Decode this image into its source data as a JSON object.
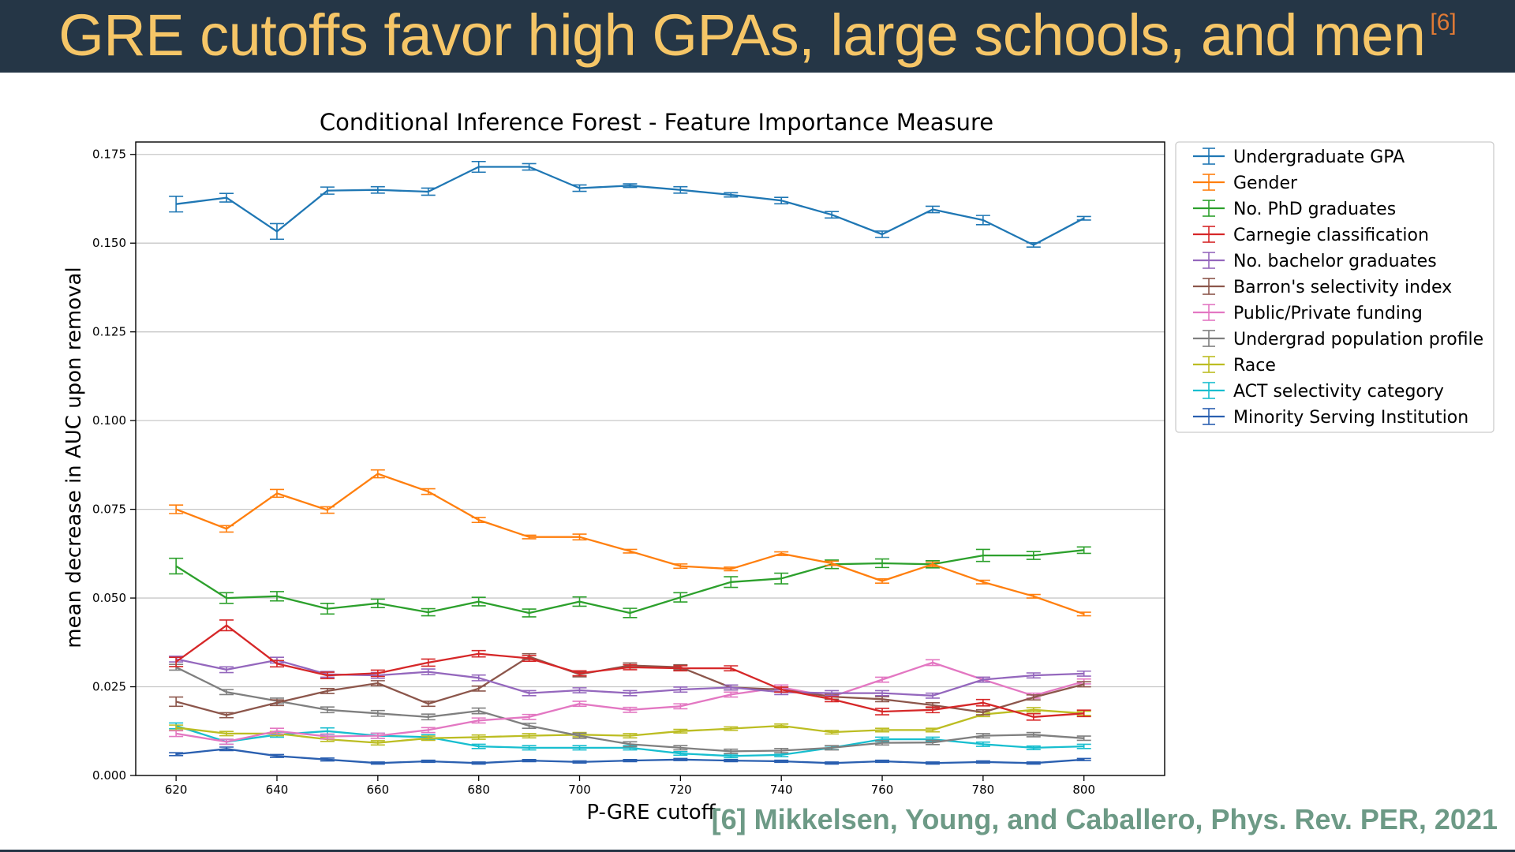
{
  "slide": {
    "title": "GRE cutoffs favor high GPAs, large schools, and men",
    "title_ref": "[6]",
    "citation": "[6] Mikkelsen, Young, and Caballero, Phys. Rev. PER, 2021"
  },
  "chart_data": {
    "type": "line",
    "title": "Conditional Inference Forest - Feature Importance Measure",
    "xlabel": "P-GRE cutoff",
    "ylabel": "mean decrease in AUC upon removal",
    "x": [
      620,
      630,
      640,
      650,
      660,
      670,
      680,
      690,
      700,
      710,
      720,
      730,
      740,
      750,
      760,
      770,
      780,
      790,
      800
    ],
    "xlim": [
      612,
      816
    ],
    "ylim": [
      0,
      0.1785
    ],
    "xticks": [
      620,
      640,
      660,
      680,
      700,
      720,
      740,
      760,
      780,
      800
    ],
    "yticks": [
      0.0,
      0.025,
      0.05,
      0.075,
      0.1,
      0.125,
      0.15,
      0.175
    ],
    "ytick_labels": [
      "0.000",
      "0.025",
      "0.050",
      "0.075",
      "0.100",
      "0.125",
      "0.150",
      "0.175"
    ],
    "grid": "horizontal",
    "legend_position": "outside-right-top",
    "series": [
      {
        "name": "Undergraduate GPA",
        "color": "#1f77b4",
        "values": [
          0.161,
          0.1628,
          0.1533,
          0.1648,
          0.165,
          0.1645,
          0.1715,
          0.1715,
          0.1655,
          0.1662,
          0.165,
          0.1636,
          0.162,
          0.158,
          0.1525,
          0.1595,
          0.1565,
          0.1495,
          0.157
        ],
        "errors": [
          0.0022,
          0.0012,
          0.0022,
          0.001,
          0.0009,
          0.001,
          0.0015,
          0.0009,
          0.0009,
          0.0005,
          0.0009,
          0.0006,
          0.0009,
          0.0009,
          0.0009,
          0.0009,
          0.0013,
          0.0006,
          0.0005
        ]
      },
      {
        "name": "Gender",
        "color": "#ff7f0e",
        "values": [
          0.075,
          0.0695,
          0.0795,
          0.0748,
          0.085,
          0.08,
          0.072,
          0.0672,
          0.0672,
          0.0632,
          0.059,
          0.0582,
          0.0625,
          0.0598,
          0.0548,
          0.0595,
          0.0545,
          0.0505,
          0.0455
        ],
        "errors": [
          0.0012,
          0.0009,
          0.0011,
          0.0009,
          0.0011,
          0.0008,
          0.0007,
          0.0005,
          0.0008,
          0.0005,
          0.0006,
          0.0005,
          0.0005,
          0.0006,
          0.0006,
          0.0006,
          0.0005,
          0.0005,
          0.0005
        ]
      },
      {
        "name": "No. PhD graduates",
        "color": "#2ca02c",
        "values": [
          0.059,
          0.05,
          0.0505,
          0.047,
          0.0485,
          0.046,
          0.049,
          0.0458,
          0.049,
          0.0458,
          0.0502,
          0.0545,
          0.0555,
          0.0595,
          0.0598,
          0.0595,
          0.062,
          0.062,
          0.0635
        ],
        "errors": [
          0.0022,
          0.0015,
          0.0013,
          0.0015,
          0.0012,
          0.001,
          0.0012,
          0.0011,
          0.0013,
          0.0013,
          0.0013,
          0.0015,
          0.0015,
          0.0012,
          0.0012,
          0.001,
          0.0017,
          0.0011,
          0.0009
        ]
      },
      {
        "name": "Carnegie classification",
        "color": "#d62728",
        "values": [
          0.032,
          0.0423,
          0.0315,
          0.0282,
          0.0288,
          0.0318,
          0.0343,
          0.033,
          0.0288,
          0.0305,
          0.0302,
          0.0302,
          0.0242,
          0.0215,
          0.018,
          0.0185,
          0.0205,
          0.0165,
          0.0175
        ],
        "errors": [
          0.0013,
          0.0015,
          0.0009,
          0.0009,
          0.0009,
          0.001,
          0.0009,
          0.0008,
          0.0007,
          0.0007,
          0.0007,
          0.0007,
          0.0007,
          0.0007,
          0.0009,
          0.0008,
          0.0009,
          0.0009,
          0.0009
        ]
      },
      {
        "name": "No. bachelor graduates",
        "color": "#9467bd",
        "values": [
          0.0328,
          0.0298,
          0.0325,
          0.0285,
          0.0282,
          0.0292,
          0.0275,
          0.0232,
          0.024,
          0.0232,
          0.0242,
          0.0248,
          0.0235,
          0.0232,
          0.0232,
          0.0225,
          0.027,
          0.0282,
          0.0287
        ],
        "errors": [
          0.0008,
          0.0008,
          0.0008,
          0.0008,
          0.0008,
          0.0008,
          0.0008,
          0.0007,
          0.0007,
          0.0007,
          0.0007,
          0.0007,
          0.0007,
          0.0007,
          0.0007,
          0.0007,
          0.0007,
          0.0007,
          0.0007
        ]
      },
      {
        "name": "Barron's selectivity index",
        "color": "#8c564b",
        "values": [
          0.0208,
          0.017,
          0.0205,
          0.0238,
          0.026,
          0.0202,
          0.0245,
          0.0335,
          0.0285,
          0.031,
          0.0305,
          0.0248,
          0.0242,
          0.0222,
          0.0215,
          0.0198,
          0.0178,
          0.022,
          0.0257
        ],
        "errors": [
          0.0013,
          0.0007,
          0.0008,
          0.0007,
          0.0007,
          0.0007,
          0.0007,
          0.0008,
          0.0007,
          0.0007,
          0.0007,
          0.0007,
          0.0007,
          0.0007,
          0.0007,
          0.0007,
          0.0007,
          0.0007,
          0.0007
        ]
      },
      {
        "name": "Public/Private funding",
        "color": "#e377c2",
        "values": [
          0.0118,
          0.0095,
          0.0125,
          0.011,
          0.0112,
          0.0128,
          0.0155,
          0.0165,
          0.0202,
          0.0185,
          0.0195,
          0.0228,
          0.0248,
          0.0222,
          0.027,
          0.0318,
          0.027,
          0.0225,
          0.0265
        ],
        "errors": [
          0.0008,
          0.0007,
          0.0008,
          0.0007,
          0.0007,
          0.0007,
          0.0007,
          0.0007,
          0.0007,
          0.0007,
          0.0007,
          0.0007,
          0.0007,
          0.0007,
          0.0007,
          0.0008,
          0.0007,
          0.0007,
          0.0007
        ]
      },
      {
        "name": "Undergrad population profile",
        "color": "#7f7f7f",
        "values": [
          0.0305,
          0.0235,
          0.021,
          0.0185,
          0.0175,
          0.0165,
          0.0182,
          0.014,
          0.0112,
          0.0088,
          0.0078,
          0.0068,
          0.007,
          0.0078,
          0.0092,
          0.0093,
          0.0112,
          0.0115,
          0.0105
        ],
        "errors": [
          0.0008,
          0.0007,
          0.0008,
          0.0008,
          0.0008,
          0.0008,
          0.0008,
          0.0007,
          0.0007,
          0.0007,
          0.0006,
          0.0006,
          0.0006,
          0.0006,
          0.0006,
          0.0006,
          0.0006,
          0.0006,
          0.0006
        ]
      },
      {
        "name": "Race",
        "color": "#bcbd22",
        "values": [
          0.0135,
          0.0118,
          0.0118,
          0.0102,
          0.0092,
          0.0105,
          0.0108,
          0.0112,
          0.0115,
          0.0112,
          0.0125,
          0.0132,
          0.014,
          0.0122,
          0.0128,
          0.0128,
          0.0172,
          0.0185,
          0.0175
        ],
        "errors": [
          0.0007,
          0.0006,
          0.0006,
          0.0006,
          0.0006,
          0.0006,
          0.0006,
          0.0006,
          0.0006,
          0.0006,
          0.0005,
          0.0005,
          0.0005,
          0.0005,
          0.0005,
          0.0005,
          0.0006,
          0.0006,
          0.0006
        ]
      },
      {
        "name": "ACT selectivity category",
        "color": "#17becf",
        "values": [
          0.014,
          0.0095,
          0.0115,
          0.0125,
          0.0112,
          0.0108,
          0.0082,
          0.0078,
          0.0078,
          0.0078,
          0.0062,
          0.0055,
          0.0058,
          0.0078,
          0.0102,
          0.0102,
          0.0088,
          0.0078,
          0.0082
        ],
        "errors": [
          0.0008,
          0.0007,
          0.0007,
          0.0009,
          0.0007,
          0.0007,
          0.0006,
          0.0006,
          0.0006,
          0.0006,
          0.0005,
          0.0005,
          0.0005,
          0.0005,
          0.0006,
          0.0006,
          0.0006,
          0.0005,
          0.0006
        ]
      },
      {
        "name": "Minority Serving Institution",
        "color": "#2a5fb0",
        "values": [
          0.006,
          0.0075,
          0.0055,
          0.0045,
          0.0035,
          0.004,
          0.0035,
          0.0042,
          0.0038,
          0.0042,
          0.0045,
          0.0042,
          0.004,
          0.0035,
          0.004,
          0.0035,
          0.0038,
          0.0035,
          0.0045
        ],
        "errors": [
          0.0004,
          0.0005,
          0.0004,
          0.0004,
          0.0003,
          0.0003,
          0.0003,
          0.0003,
          0.0003,
          0.0003,
          0.0003,
          0.0003,
          0.0003,
          0.0003,
          0.0003,
          0.0003,
          0.0003,
          0.0003,
          0.0003
        ]
      }
    ]
  }
}
